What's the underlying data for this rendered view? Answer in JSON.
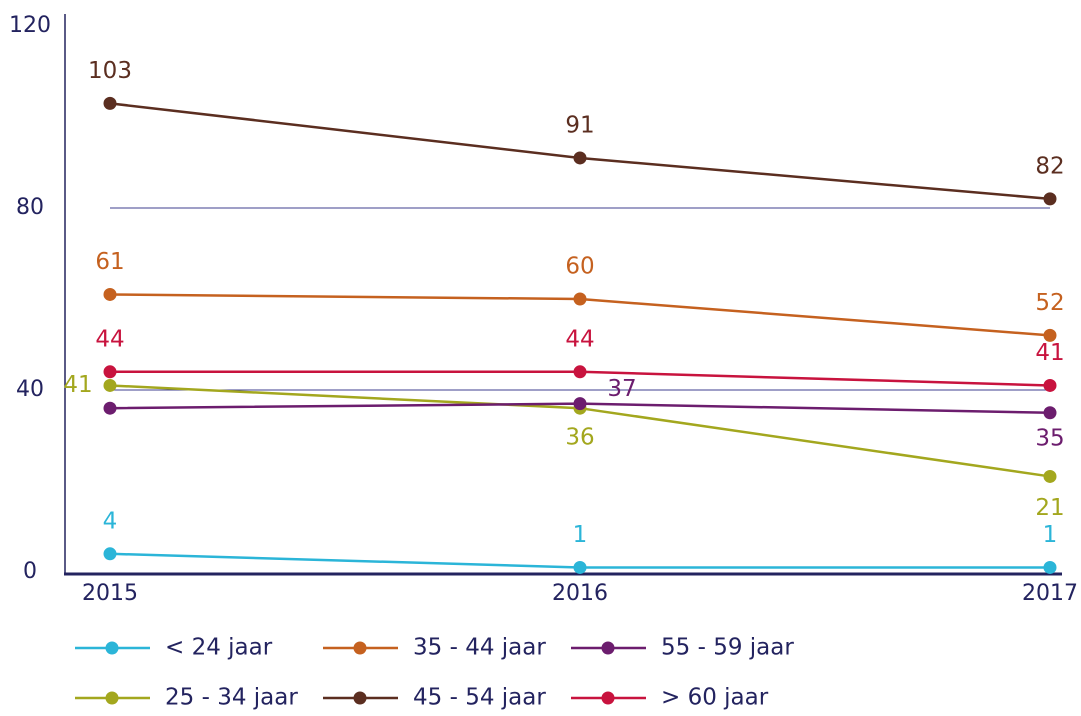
{
  "chart_data": {
    "type": "line",
    "categories": [
      "2015",
      "2016",
      "2017"
    ],
    "ylim": [
      0,
      120
    ],
    "yticks": [
      0,
      40,
      80,
      120
    ],
    "grid": true,
    "series": [
      {
        "name": "< 24 jaar",
        "color": "#2bb5d8",
        "values": [
          4,
          1,
          1
        ]
      },
      {
        "name": "25 - 34 jaar",
        "color": "#a3a71e",
        "values": [
          41,
          36,
          21
        ]
      },
      {
        "name": "35 - 44 jaar",
        "color": "#c5611f",
        "values": [
          61,
          60,
          52
        ]
      },
      {
        "name": "45 - 54 jaar",
        "color": "#5b2e20",
        "values": [
          103,
          91,
          82
        ]
      },
      {
        "name": "55 - 59 jaar",
        "color": "#6c1d6e",
        "values": [
          36,
          37,
          35
        ],
        "value_labels": [
          null,
          "37",
          "35"
        ]
      },
      {
        "name": "> 60 jaar",
        "color": "#c8133e",
        "values": [
          44,
          44,
          41
        ]
      }
    ]
  }
}
